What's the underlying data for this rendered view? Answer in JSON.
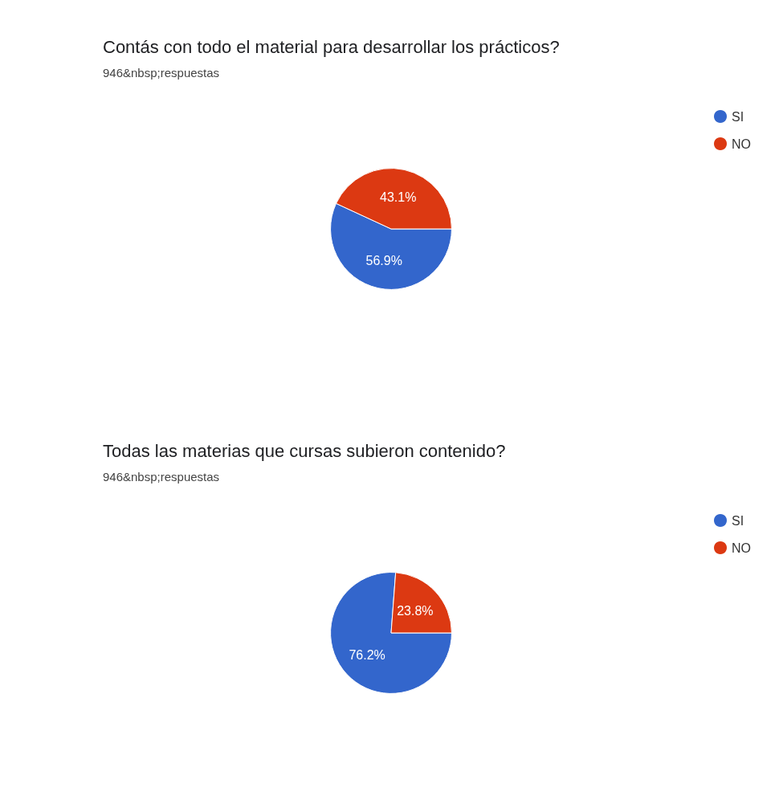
{
  "chart_data": [
    {
      "type": "pie",
      "title": "Contás con todo el material para desarrollar los prácticos?",
      "subtitle": "946&nbsp;respuestas",
      "categories": [
        "SI",
        "NO"
      ],
      "values": [
        56.9,
        43.1
      ],
      "colors": [
        "#3366cc",
        "#dc3912"
      ],
      "value_labels": [
        "56.9%",
        "43.1%"
      ],
      "legend": "top right"
    },
    {
      "type": "pie",
      "title": "Todas las materias que cursas subieron contenido?",
      "subtitle": "946&nbsp;respuestas",
      "categories": [
        "SI",
        "NO"
      ],
      "values": [
        76.2,
        23.8
      ],
      "colors": [
        "#3366cc",
        "#dc3912"
      ],
      "value_labels": [
        "76.2%",
        "23.8%"
      ],
      "legend": "top right"
    }
  ]
}
